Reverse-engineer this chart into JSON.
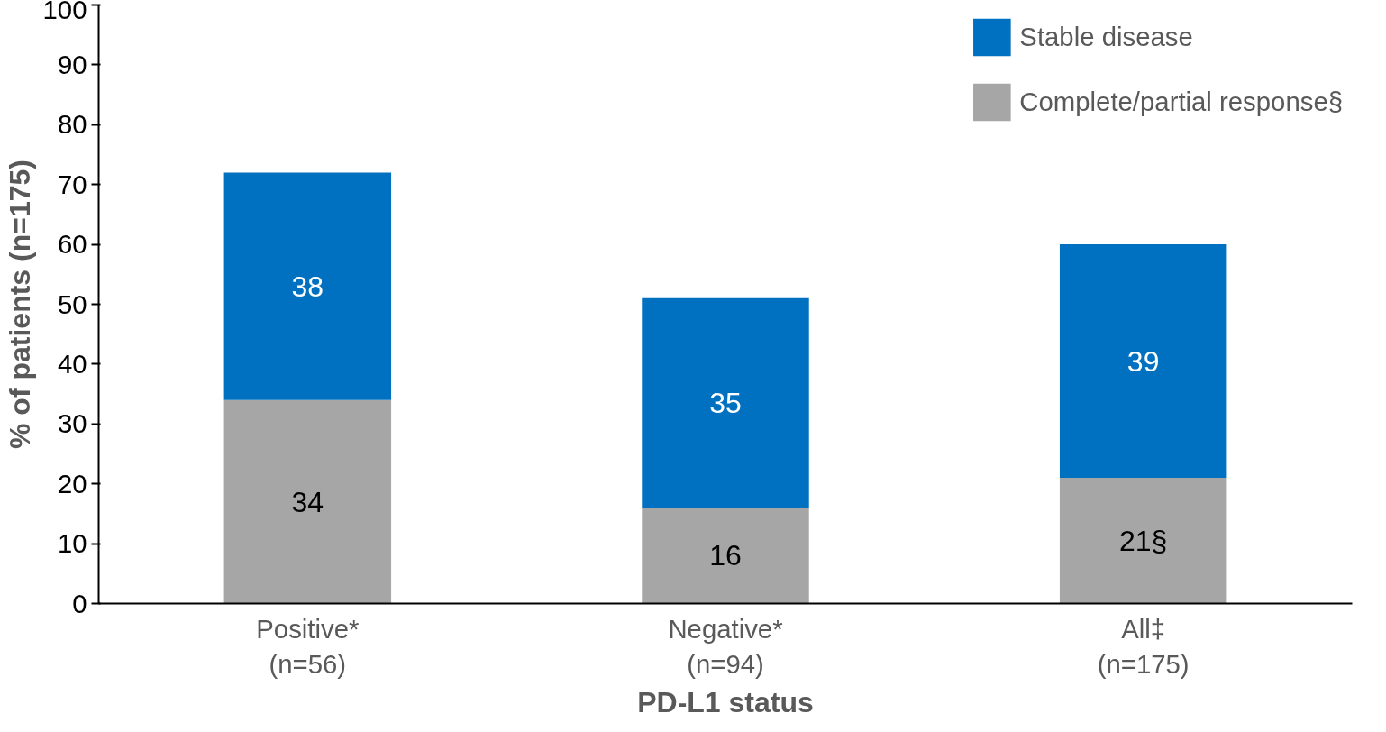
{
  "chart_data": {
    "type": "bar",
    "stacked": true,
    "categories": [
      "Positive*\n(n=56)",
      "Negative*\n(n=94)",
      "All‡\n(n=175)"
    ],
    "xlabel": "PD-L1 status",
    "ylabel": "% of patients (n=175)",
    "ylim": [
      0,
      100
    ],
    "yticks": [
      0,
      10,
      20,
      30,
      40,
      50,
      60,
      70,
      80,
      90,
      100
    ],
    "grid": false,
    "legend": "top right",
    "series": [
      {
        "name": "Complete/partial response§",
        "color": "#a6a6a6",
        "values": [
          34,
          16,
          21
        ],
        "value_labels": [
          "34",
          "16",
          "21§"
        ]
      },
      {
        "name": "Stable disease",
        "color": "#0070c0",
        "values": [
          38,
          35,
          39
        ],
        "value_labels": [
          "38",
          "35",
          "39"
        ]
      }
    ]
  }
}
